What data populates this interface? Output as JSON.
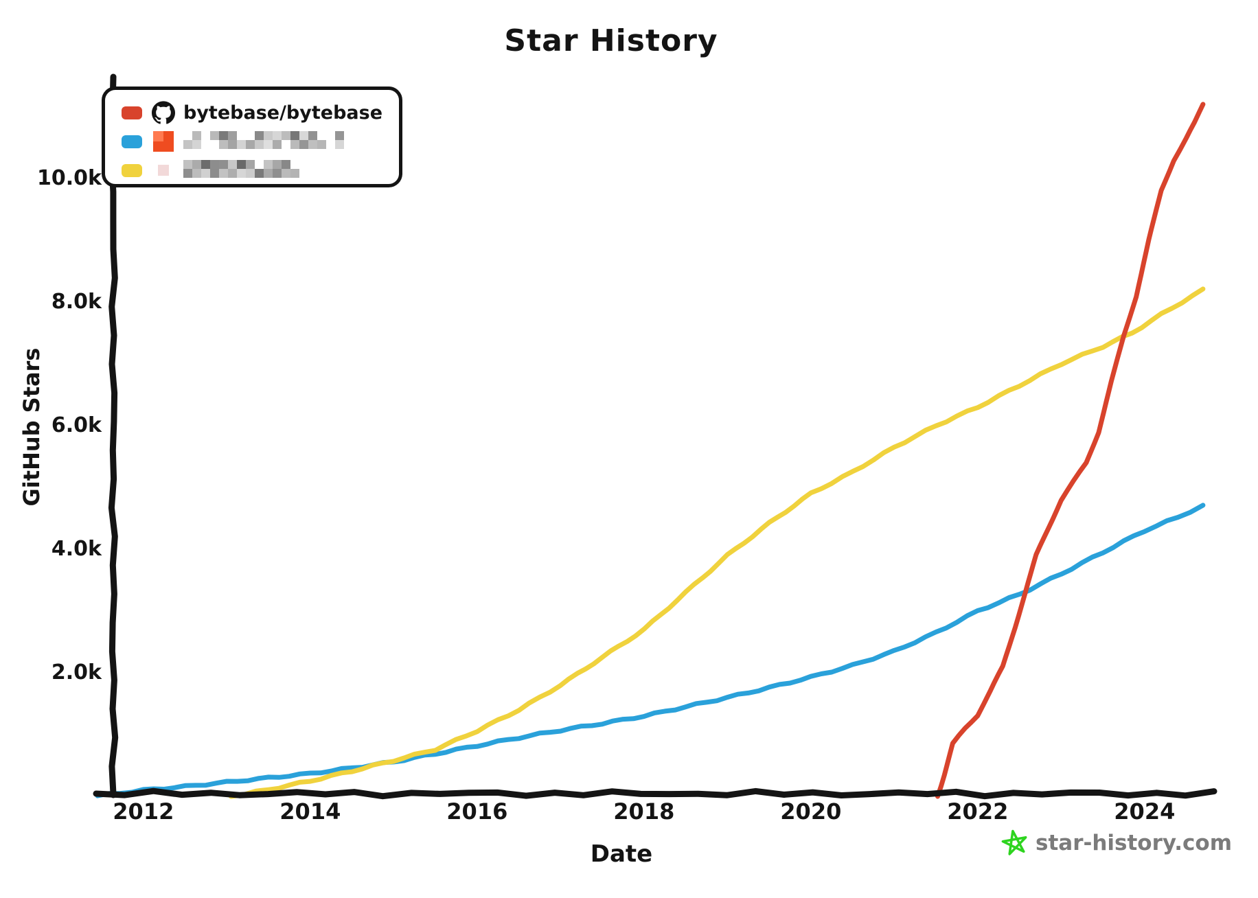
{
  "title": "Star History",
  "legend": {
    "entries": [
      {
        "label": "bytebase/bytebase",
        "swatch_color": "#d8432c",
        "avatar": "github-logo",
        "redacted": false
      },
      {
        "label": "",
        "swatch_color": "#2aa1da",
        "avatar": "orange-square-avatar",
        "redacted": true
      },
      {
        "label": "",
        "swatch_color": "#f0d23d",
        "avatar": "pink-square-avatar",
        "redacted": true
      }
    ]
  },
  "watermark": {
    "text": "star-history.com",
    "icon": "green-star",
    "text_color": "#7b7b7b",
    "icon_color": "#2ed41f"
  },
  "colors": {
    "axis": "#141414",
    "background": "#ffffff"
  },
  "chart_data": {
    "type": "line",
    "title": "Star History",
    "xlabel": "Date",
    "ylabel": "GitHub Stars",
    "grid": false,
    "legend_position": "top-left",
    "xlim": [
      2011.45,
      2024.83
    ],
    "ylim": [
      0,
      11600
    ],
    "x_ticks": [
      2012,
      2014,
      2016,
      2018,
      2020,
      2022,
      2024
    ],
    "x_tick_labels": [
      "2012",
      "2014",
      "2016",
      "2018",
      "2020",
      "2022",
      "2024"
    ],
    "y_ticks": [
      2000,
      4000,
      6000,
      8000,
      10000
    ],
    "y_tick_labels": [
      "2.0k",
      "4.0k",
      "6.0k",
      "8.0k",
      "10.0k"
    ],
    "series": [
      {
        "name": "",
        "redacted": true,
        "color": "#2aa1da",
        "points": [
          [
            2011.45,
            10
          ],
          [
            2012,
            100
          ],
          [
            2012.5,
            160
          ],
          [
            2013,
            230
          ],
          [
            2013.5,
            300
          ],
          [
            2014,
            370
          ],
          [
            2014.5,
            460
          ],
          [
            2015,
            560
          ],
          [
            2015.5,
            690
          ],
          [
            2016,
            820
          ],
          [
            2016.5,
            950
          ],
          [
            2017,
            1070
          ],
          [
            2017.5,
            1180
          ],
          [
            2018,
            1300
          ],
          [
            2018.5,
            1450
          ],
          [
            2019,
            1600
          ],
          [
            2019.5,
            1760
          ],
          [
            2020,
            1930
          ],
          [
            2020.5,
            2120
          ],
          [
            2021,
            2350
          ],
          [
            2021.5,
            2650
          ],
          [
            2022,
            3000
          ],
          [
            2022.5,
            3270
          ],
          [
            2023,
            3600
          ],
          [
            2023.5,
            3950
          ],
          [
            2024,
            4300
          ],
          [
            2024.4,
            4520
          ],
          [
            2024.7,
            4700
          ]
        ]
      },
      {
        "name": "",
        "redacted": true,
        "color": "#f0d23d",
        "points": [
          [
            2013.05,
            0
          ],
          [
            2013.5,
            110
          ],
          [
            2014,
            250
          ],
          [
            2014.5,
            410
          ],
          [
            2015,
            580
          ],
          [
            2015.5,
            760
          ],
          [
            2016,
            1060
          ],
          [
            2016.5,
            1400
          ],
          [
            2017,
            1800
          ],
          [
            2017.5,
            2250
          ],
          [
            2018,
            2700
          ],
          [
            2018.5,
            3300
          ],
          [
            2019,
            3900
          ],
          [
            2019.5,
            4420
          ],
          [
            2020,
            4900
          ],
          [
            2020.5,
            5250
          ],
          [
            2021,
            5650
          ],
          [
            2021.5,
            6000
          ],
          [
            2022,
            6300
          ],
          [
            2022.5,
            6650
          ],
          [
            2023,
            7000
          ],
          [
            2023.5,
            7280
          ],
          [
            2023.85,
            7500
          ],
          [
            2024.2,
            7800
          ],
          [
            2024.7,
            8200
          ]
        ]
      },
      {
        "name": "bytebase/bytebase",
        "redacted": false,
        "color": "#d8432c",
        "points": [
          [
            2021.52,
            0
          ],
          [
            2021.6,
            350
          ],
          [
            2021.7,
            850
          ],
          [
            2021.85,
            1100
          ],
          [
            2022.0,
            1320
          ],
          [
            2022.15,
            1700
          ],
          [
            2022.3,
            2100
          ],
          [
            2022.45,
            2750
          ],
          [
            2022.57,
            3300
          ],
          [
            2022.7,
            3900
          ],
          [
            2022.85,
            4350
          ],
          [
            2023.0,
            4800
          ],
          [
            2023.15,
            5100
          ],
          [
            2023.3,
            5400
          ],
          [
            2023.45,
            5900
          ],
          [
            2023.6,
            6700
          ],
          [
            2023.75,
            7450
          ],
          [
            2023.9,
            8100
          ],
          [
            2024.05,
            9000
          ],
          [
            2024.2,
            9800
          ],
          [
            2024.35,
            10300
          ],
          [
            2024.5,
            10650
          ],
          [
            2024.6,
            10900
          ],
          [
            2024.7,
            11200
          ]
        ]
      }
    ]
  }
}
